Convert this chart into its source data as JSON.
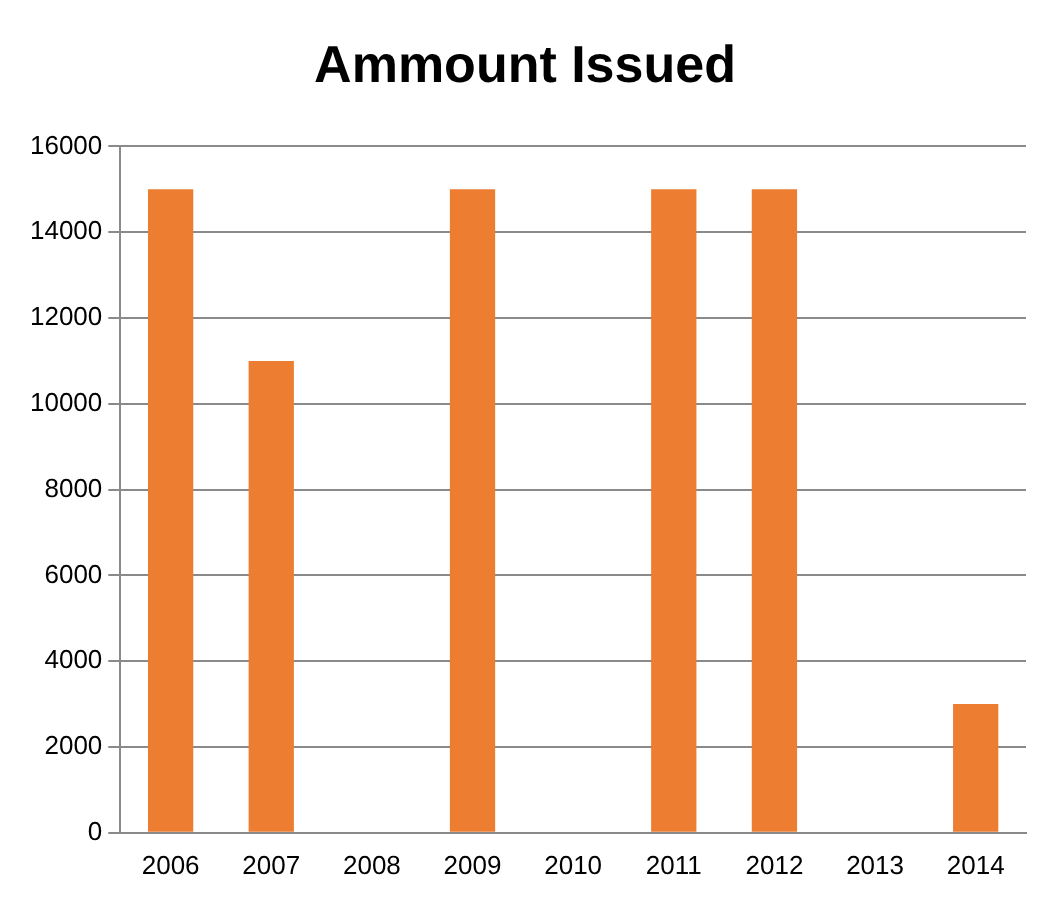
{
  "chart_data": {
    "type": "bar",
    "title": "Ammount Issued",
    "categories": [
      "2006",
      "2007",
      "2008",
      "2009",
      "2010",
      "2011",
      "2012",
      "2013",
      "2014"
    ],
    "values": [
      15000,
      11000,
      0,
      15000,
      0,
      15000,
      15000,
      0,
      3000
    ],
    "color": "#ed7d31",
    "ylim": [
      0,
      16000
    ],
    "yticks": [
      0,
      2000,
      4000,
      6000,
      8000,
      10000,
      12000,
      14000,
      16000
    ],
    "grid": "y",
    "legend": false
  }
}
